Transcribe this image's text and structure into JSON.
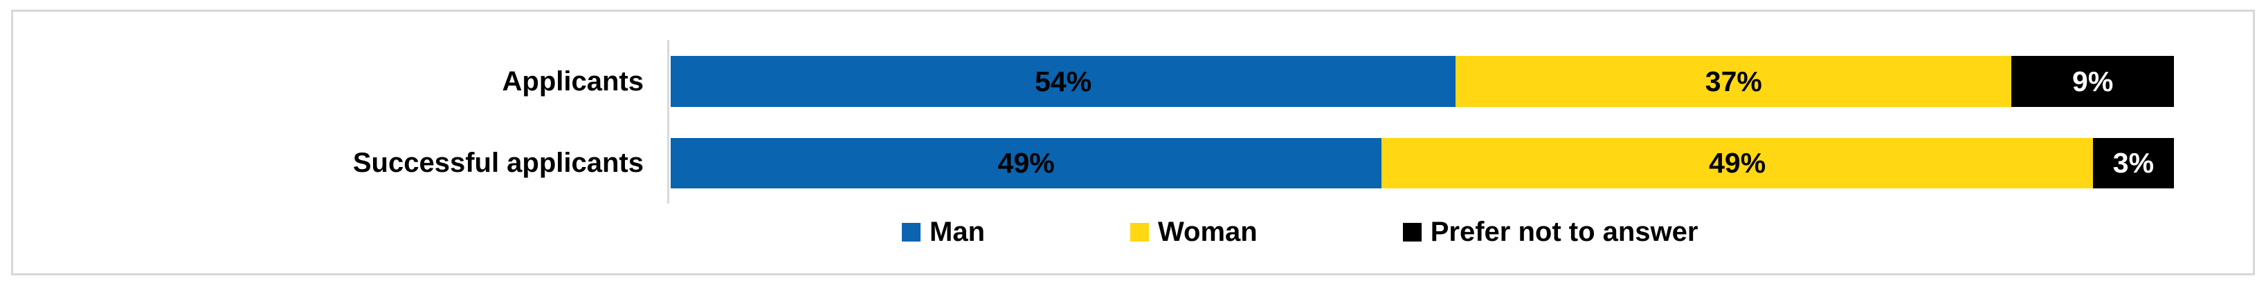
{
  "chart_data": {
    "type": "bar",
    "orientation": "horizontal",
    "stacked": true,
    "title": "",
    "xlabel": "",
    "ylabel": "",
    "xlim": [
      0,
      100
    ],
    "grid": false,
    "legend_position": "bottom",
    "categories": [
      "Applicants",
      "Successful applicants"
    ],
    "series": [
      {
        "name": "Man",
        "color": "#0a64af",
        "values": [
          54,
          49
        ]
      },
      {
        "name": "Woman",
        "color": "#ffd713",
        "values": [
          37,
          49
        ]
      },
      {
        "name": "Prefer not to answer",
        "color": "#000000",
        "values": [
          9,
          3
        ]
      }
    ],
    "value_labels": [
      [
        "54%",
        "37%",
        "9%"
      ],
      [
        "49%",
        "49%",
        "3%"
      ]
    ]
  },
  "colors": {
    "panel_border": "#d7d7d7",
    "axis_line": "#d9d9d9",
    "label_text": "#000000",
    "label_text_on_dark": "#ffffff",
    "background": "#ffffff"
  }
}
